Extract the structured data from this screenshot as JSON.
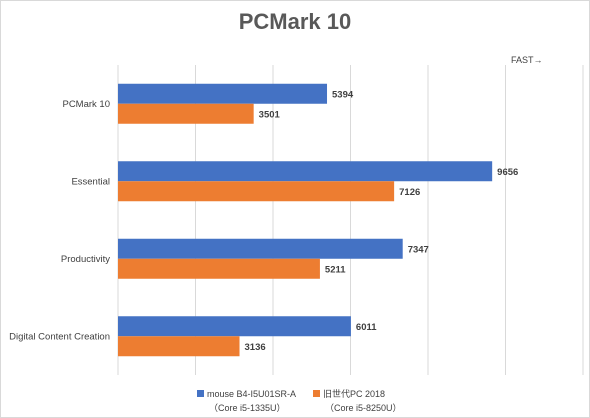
{
  "chart_data": {
    "type": "bar",
    "orientation": "horizontal",
    "title": "PCMark 10",
    "direction_note": "FAST→",
    "categories": [
      "PCMark 10",
      "Essential",
      "Productivity",
      "Digital Content Creation"
    ],
    "series": [
      {
        "name": "mouse B4-I5U01SR-A",
        "sub": "（Core i5-1335U）",
        "color": "#4472c4",
        "values": [
          5394,
          9656,
          7347,
          6011
        ]
      },
      {
        "name": "旧世代PC 2018",
        "sub": "（Core i5-8250U）",
        "color": "#ed7d31",
        "values": [
          3501,
          7126,
          5211,
          3136
        ]
      }
    ],
    "xlim": [
      0,
      12000
    ],
    "grid": true,
    "legend": "bottom"
  }
}
